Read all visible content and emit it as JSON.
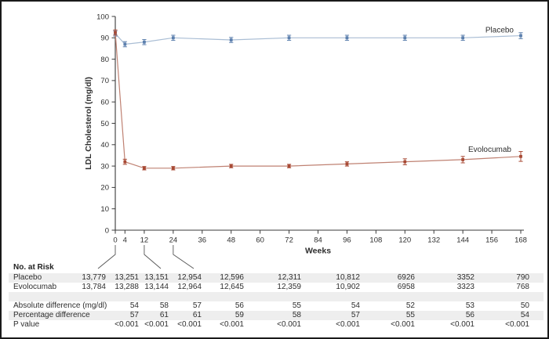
{
  "figure": {
    "xlabel": "Weeks",
    "ylabel": "LDL Cholesterol (mg/dl)"
  },
  "chart_data": {
    "type": "line",
    "xlabel": "Weeks",
    "ylabel": "LDL Cholesterol (mg/dl)",
    "xlim": [
      0,
      168
    ],
    "ylim": [
      0,
      100
    ],
    "x_ticks": [
      0,
      4,
      12,
      24,
      36,
      48,
      60,
      72,
      84,
      96,
      108,
      120,
      132,
      144,
      156,
      168
    ],
    "y_ticks": [
      0,
      10,
      20,
      30,
      40,
      50,
      60,
      70,
      80,
      90,
      100
    ],
    "grid": false,
    "legend_position": "inline-end-labels",
    "x": [
      0,
      4,
      12,
      24,
      48,
      72,
      96,
      120,
      144,
      168
    ],
    "series": [
      {
        "name": "Placebo",
        "values": [
          92,
          87,
          88,
          90,
          89,
          90,
          90,
          90,
          90,
          91
        ],
        "errors": [
          1.2,
          1.2,
          1.2,
          1.2,
          1.2,
          1.2,
          1.2,
          1.2,
          1.2,
          1.4
        ],
        "line_color": "#a9bdd4",
        "marker_color": "#5d80ae"
      },
      {
        "name": "Evolocumab",
        "values": [
          92.5,
          32,
          29,
          29,
          30,
          30,
          31,
          32,
          33,
          34.5
        ],
        "errors": [
          1.2,
          1.2,
          0.8,
          0.8,
          0.8,
          0.8,
          1.0,
          1.4,
          1.5,
          2.3
        ],
        "line_color": "#bf8172",
        "marker_color": "#a84a35"
      }
    ]
  },
  "risk_table": {
    "title": "No. at Risk",
    "rows": [
      {
        "label": "Placebo",
        "values": [
          "13,779",
          "13,251",
          "13,151",
          "12,954",
          "12,596",
          "12,311",
          "10,812",
          "6926",
          "3352",
          "790"
        ]
      },
      {
        "label": "Evolocumab",
        "values": [
          "13,784",
          "13,288",
          "13,144",
          "12,964",
          "12,645",
          "12,359",
          "10,902",
          "6958",
          "3323",
          "768"
        ]
      },
      {
        "label": "Absolute difference (mg/dl)",
        "values": [
          "",
          "54",
          "58",
          "57",
          "56",
          "55",
          "54",
          "52",
          "53",
          "50"
        ]
      },
      {
        "label": "Percentage difference",
        "values": [
          "",
          "57",
          "61",
          "61",
          "59",
          "58",
          "57",
          "55",
          "56",
          "54"
        ]
      },
      {
        "label": "P value",
        "values": [
          "",
          "<0.001",
          "<0.001",
          "<0.001",
          "<0.001",
          "<0.001",
          "<0.001",
          "<0.001",
          "<0.001",
          "<0.001"
        ]
      }
    ]
  }
}
